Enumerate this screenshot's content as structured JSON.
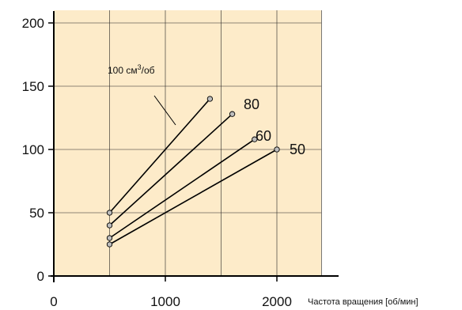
{
  "chart_data": {
    "type": "line",
    "x_axis": {
      "label": "Частота вращения [об/мин]",
      "range": [
        0,
        2400
      ],
      "ticks": [
        0,
        1000,
        2000
      ],
      "grid": [
        0,
        500,
        1000,
        1500,
        2000,
        2400
      ]
    },
    "y_axis": {
      "label": "",
      "range": [
        0,
        210
      ],
      "ticks": [
        0,
        50,
        100,
        150,
        200
      ],
      "grid": [
        50,
        100,
        150,
        200
      ]
    },
    "grid": true,
    "colors": {
      "plot_background": "#fdebc9",
      "line": "#000000",
      "marker": "#bdbdbd"
    },
    "series": [
      {
        "name": "100",
        "label_text": "100 см",
        "label_sup": "3",
        "label_tail": "/об",
        "points": [
          [
            500,
            50
          ],
          [
            1400,
            140
          ]
        ]
      },
      {
        "name": "80",
        "label_text": "80",
        "points": [
          [
            500,
            40
          ],
          [
            1600,
            128
          ]
        ]
      },
      {
        "name": "60",
        "label_text": "60",
        "points": [
          [
            500,
            30
          ],
          [
            1800,
            108
          ]
        ]
      },
      {
        "name": "50",
        "label_text": "50",
        "points": [
          [
            500,
            25
          ],
          [
            2000,
            100
          ]
        ]
      }
    ]
  }
}
